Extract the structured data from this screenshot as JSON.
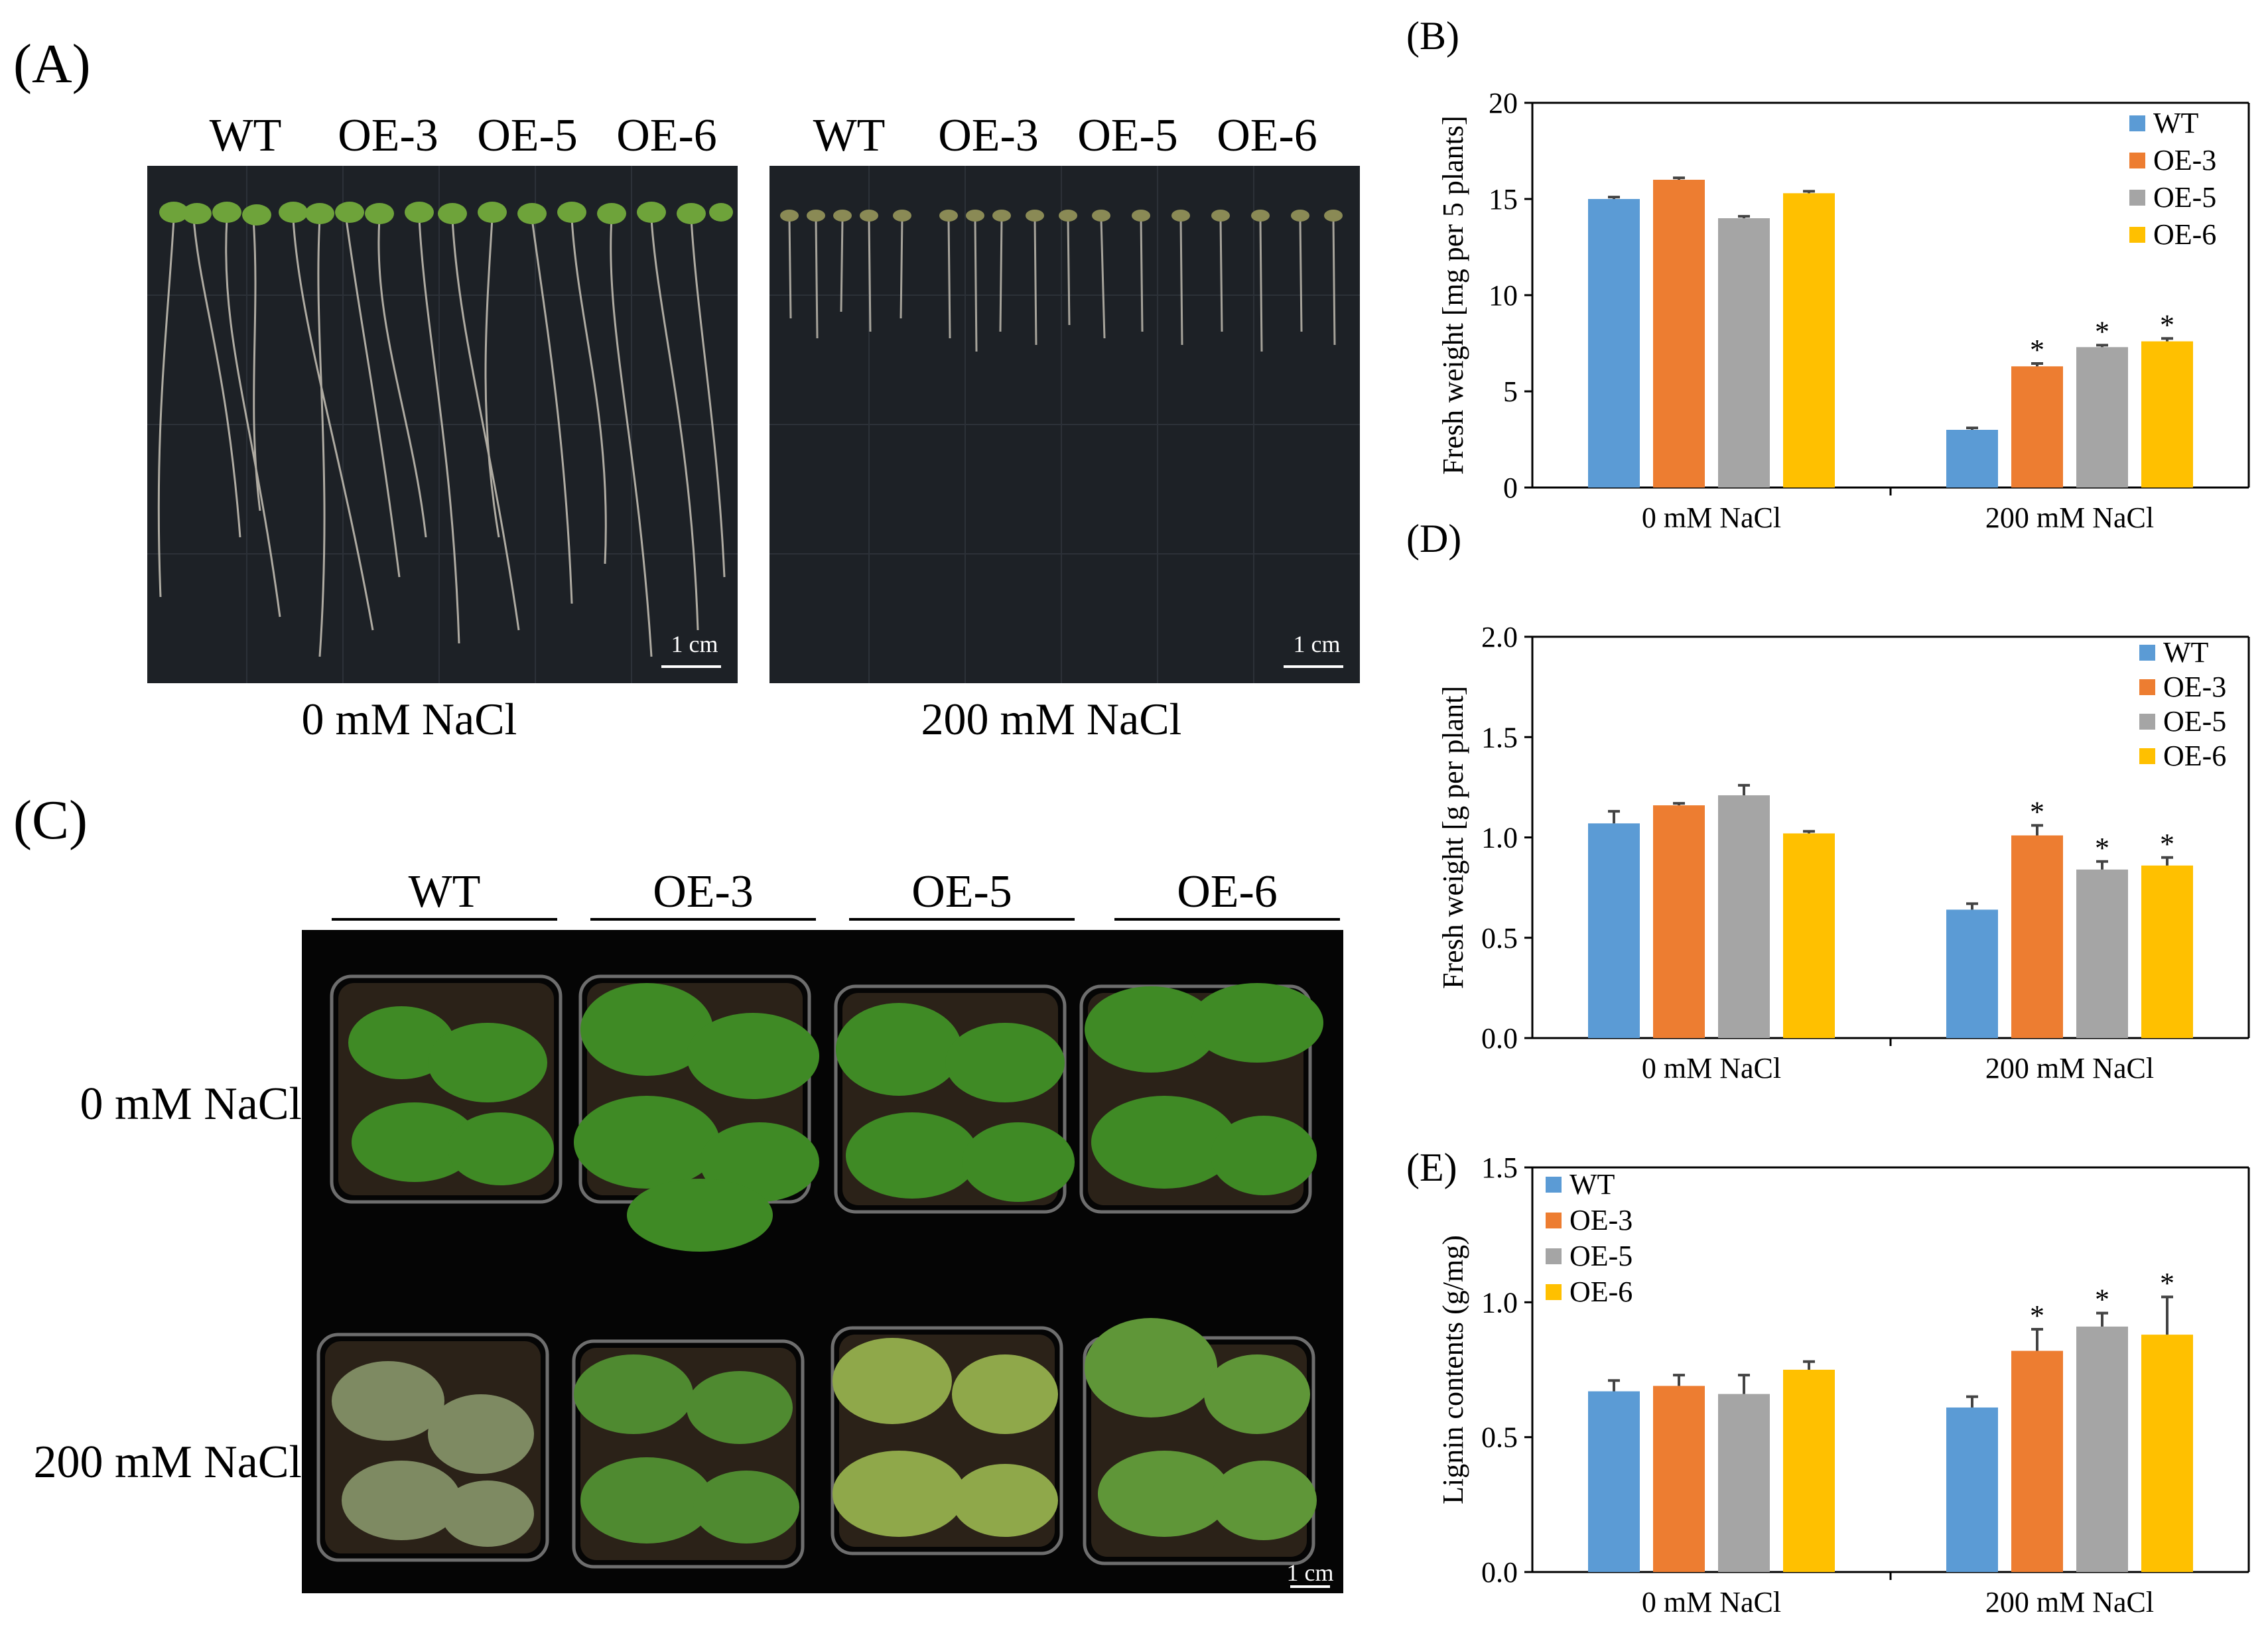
{
  "panel_labels": {
    "A": "(A)",
    "B": "(B)",
    "C": "(C)",
    "D": "(D)",
    "E": "(E)"
  },
  "genotypes": [
    "WT",
    "OE-3",
    "OE-5",
    "OE-6"
  ],
  "conditions": [
    "0 mM NaCl",
    "200 mM NaCl"
  ],
  "scale_bar": "1 cm",
  "colors": {
    "WT": "#5b9bd5",
    "OE-3": "#ed7d31",
    "OE-5": "#a5a5a5",
    "OE-6": "#ffc000"
  },
  "chart_data": [
    {
      "panel": "B",
      "type": "bar",
      "categories": [
        "0 mM NaCl",
        "200 mM NaCl"
      ],
      "series": [
        {
          "name": "WT",
          "values": [
            15.0,
            3.0
          ],
          "errors": [
            0.1,
            0.1
          ],
          "sig": [
            "",
            ""
          ]
        },
        {
          "name": "OE-3",
          "values": [
            16.0,
            6.3
          ],
          "errors": [
            0.1,
            0.15
          ],
          "sig": [
            "",
            "*"
          ]
        },
        {
          "name": "OE-5",
          "values": [
            14.0,
            7.3
          ],
          "errors": [
            0.1,
            0.1
          ],
          "sig": [
            "",
            "*"
          ]
        },
        {
          "name": "OE-6",
          "values": [
            15.3,
            7.6
          ],
          "errors": [
            0.1,
            0.15
          ],
          "sig": [
            "",
            "*"
          ]
        }
      ],
      "ylabel": "Fresh weight [mg per 5 plants]",
      "ylim": [
        0,
        20
      ],
      "yticks": [
        "0",
        "5",
        "10",
        "15",
        "20"
      ],
      "legend": "top-right"
    },
    {
      "panel": "D",
      "type": "bar",
      "categories": [
        "0 mM NaCl",
        "200 mM NaCl"
      ],
      "series": [
        {
          "name": "WT",
          "values": [
            1.07,
            0.64
          ],
          "errors": [
            0.06,
            0.03
          ],
          "sig": [
            "",
            ""
          ]
        },
        {
          "name": "OE-3",
          "values": [
            1.16,
            1.01
          ],
          "errors": [
            0.01,
            0.05
          ],
          "sig": [
            "",
            "*"
          ]
        },
        {
          "name": "OE-5",
          "values": [
            1.21,
            0.84
          ],
          "errors": [
            0.05,
            0.04
          ],
          "sig": [
            "",
            "*"
          ]
        },
        {
          "name": "OE-6",
          "values": [
            1.02,
            0.86
          ],
          "errors": [
            0.01,
            0.04
          ],
          "sig": [
            "",
            "*"
          ]
        }
      ],
      "ylabel": "Fresh weight [g per plant]",
      "ylim": [
        0,
        2.0
      ],
      "yticks": [
        "0.0",
        "0.5",
        "1.0",
        "1.5",
        "2.0"
      ],
      "legend": "top-right"
    },
    {
      "panel": "E",
      "type": "bar",
      "categories": [
        "0 mM NaCl",
        "200 mM NaCl"
      ],
      "series": [
        {
          "name": "WT",
          "values": [
            0.67,
            0.61
          ],
          "errors": [
            0.04,
            0.04
          ],
          "sig": [
            "",
            ""
          ]
        },
        {
          "name": "OE-3",
          "values": [
            0.69,
            0.82
          ],
          "errors": [
            0.04,
            0.08
          ],
          "sig": [
            "",
            "*"
          ]
        },
        {
          "name": "OE-5",
          "values": [
            0.66,
            0.91
          ],
          "errors": [
            0.07,
            0.05
          ],
          "sig": [
            "",
            "*"
          ]
        },
        {
          "name": "OE-6",
          "values": [
            0.75,
            0.88
          ],
          "errors": [
            0.03,
            0.14
          ],
          "sig": [
            "",
            "*"
          ]
        }
      ],
      "ylabel": "Lignin contents (g/mg)",
      "ylim": [
        0,
        1.5
      ],
      "yticks": [
        "0.0",
        "0.5",
        "1.0",
        "1.5"
      ],
      "legend": "top-left"
    }
  ]
}
